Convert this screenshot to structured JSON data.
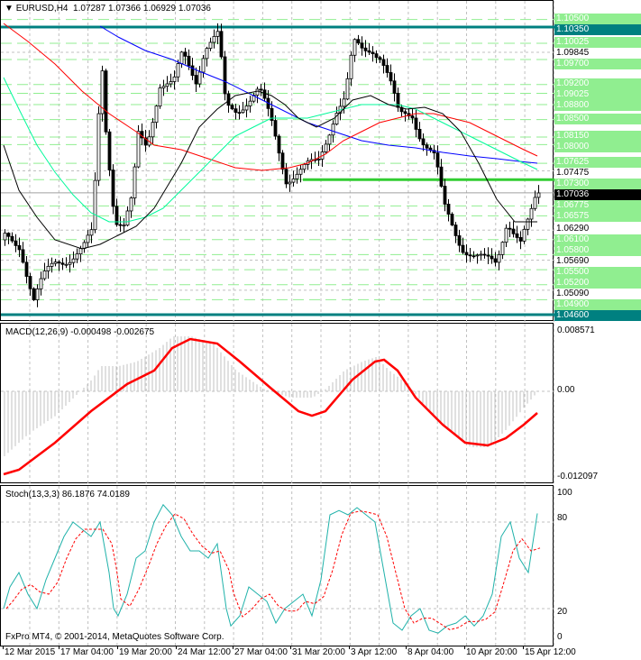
{
  "chart": {
    "symbol_title": "EURUSD,H4",
    "ohlc": "1.07287 1.07366 1.06929 1.07036",
    "current_price": "1.07036",
    "copyright": "FxPro MT4, © 2001-2014, MetaQuotes Software Corp.",
    "colors": {
      "bull_candle": "#ffffff",
      "bear_candle": "#000000",
      "level_line": "#90ee90",
      "key_level": "#008080",
      "breakout_line": "#32cd32",
      "ma_fast": "#000000",
      "ma_mid": "#00fa9a",
      "ma_slow": "#ff0000",
      "ma_long": "#0000ff"
    }
  },
  "price_scale": {
    "green_levels": [
      "1.10500",
      "1.10025",
      "1.09700",
      "1.09200",
      "1.09025",
      "1.08800",
      "1.08500",
      "1.08150",
      "1.08000",
      "1.07625",
      "1.07300",
      "1.06775",
      "1.06575",
      "1.06100",
      "1.05800",
      "1.05500",
      "1.05200",
      "1.04900"
    ],
    "teal_levels": [
      "1.10350",
      "1.04600"
    ],
    "scale_ticks": [
      "1.09845",
      "1.07475",
      "1.06290",
      "1.05690",
      "1.05090"
    ],
    "breakout_level": "1.07300"
  },
  "macd": {
    "title": "MACD(12,26,9) -0.000498 -0.002675",
    "scale": [
      "0.008571",
      "0.00",
      "-0.012097"
    ]
  },
  "stoch": {
    "title": "Stoch(13,3,3) 86.1876 74.0189",
    "scale": [
      "100",
      "80",
      "20",
      "0"
    ]
  },
  "time_axis": [
    "12 Mar 2015",
    "17 Mar 04:00",
    "19 Mar 20:00",
    "24 Mar 12:00",
    "27 Mar 04:00",
    "31 Mar 20:00",
    "3 Apr 12:00",
    "8 Apr 04:00",
    "10 Apr 20:00",
    "15 Apr 12:00"
  ]
}
